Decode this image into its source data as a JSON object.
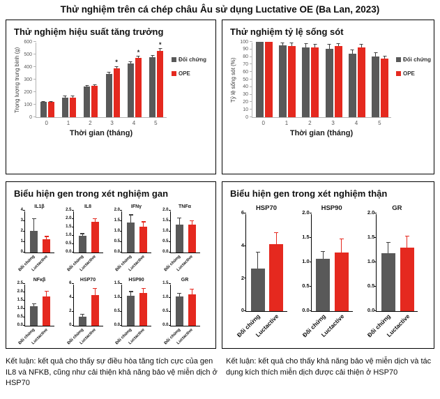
{
  "page_title": "Thử nghiệm trên cá chép châu Âu sử dụng Luctative OE (Ba Lan, 2023)",
  "colors": {
    "control": "#595959",
    "treatment": "#e5291f",
    "axis": "#b3b3b3",
    "error": "#3f3f3f"
  },
  "footers": {
    "left": "Kết luận: kết quả cho thấy sự điều hòa tăng tích cực của gen IL8 và NFKB, cũng như cải thiện khả năng bảo vệ miễn dịch ở HSP70",
    "right": "Kết luận: kết quả cho thấy khả năng bảo vệ miễn dịch và tác dụng kích thích miễn dịch được cải thiện ở HSP70"
  },
  "chart_data": [
    {
      "id": "growth",
      "type": "bar",
      "panel_title": "Thử nghiệm hiệu suất tăng trưởng",
      "xlabel": "Thời gian (tháng)",
      "ylabel": "Trọng lượng trung bình (g)",
      "categories": [
        "0",
        "1",
        "2",
        "3",
        "4",
        "5"
      ],
      "ylim": [
        0,
        600
      ],
      "yticks": [
        "0",
        "100",
        "200",
        "300",
        "400",
        "500",
        "600"
      ],
      "legend_position": "right",
      "grid": false,
      "series": [
        {
          "name": "Đối chứng",
          "role": "control",
          "values": [
            120,
            158,
            245,
            345,
            430,
            480
          ],
          "errors": [
            5,
            6,
            6,
            8,
            8,
            10
          ],
          "sig": [
            0,
            0,
            0,
            0,
            0,
            0
          ]
        },
        {
          "name": "OPE",
          "role": "treatment",
          "values": [
            120,
            158,
            252,
            390,
            470,
            530
          ],
          "errors": [
            5,
            6,
            6,
            12,
            12,
            12
          ],
          "sig": [
            0,
            0,
            0,
            1,
            1,
            1
          ]
        }
      ]
    },
    {
      "id": "survival",
      "type": "bar",
      "panel_title": "Thử nghiệm tỷ lệ sống sót",
      "xlabel": "Thời gian (tháng)",
      "ylabel": "Tỷ lệ sống sót (%)",
      "categories": [
        "0",
        "1",
        "2",
        "3",
        "4",
        "5"
      ],
      "ylim": [
        0,
        100
      ],
      "yticks": [
        "0",
        "10",
        "20",
        "30",
        "40",
        "50",
        "60",
        "70",
        "80",
        "90",
        "100"
      ],
      "legend_position": "right",
      "grid": false,
      "series": [
        {
          "name": "Đối chứng",
          "role": "control",
          "values": [
            100,
            95,
            93,
            91,
            84,
            81
          ],
          "errors": [
            0,
            3,
            4,
            5,
            5,
            4
          ],
          "sig": [
            0,
            0,
            0,
            0,
            0,
            0
          ]
        },
        {
          "name": "OPE",
          "role": "treatment",
          "values": [
            100,
            94,
            93,
            94,
            93,
            78
          ],
          "errors": [
            0,
            4,
            3,
            3,
            3,
            3
          ],
          "sig": [
            0,
            0,
            0,
            0,
            0,
            0
          ]
        }
      ]
    },
    {
      "id": "liver-gene-expression",
      "type": "bar",
      "panel_title": "Biểu hiện gen trong xét nghiệm gan",
      "categories": [
        "Đối chứng",
        "Luctactive"
      ],
      "charts": [
        {
          "gene": "IL1β",
          "ymax": 4,
          "yticks": [
            "0",
            "1",
            "2",
            "3",
            "4"
          ],
          "control": 2.1,
          "control_err": 1.1,
          "treatment": 1.3,
          "treatment_err": 0.2
        },
        {
          "gene": "IL8",
          "ymax": 2.5,
          "yticks": [
            "0.0",
            "0.5",
            "1.0",
            "1.5",
            "2.0",
            "2.5"
          ],
          "control": 1.0,
          "control_err": 0.1,
          "treatment": 1.85,
          "treatment_err": 0.15
        },
        {
          "gene": "IFNγ",
          "ymax": 2.0,
          "yticks": [
            "0.0",
            "0.5",
            "1.0",
            "1.5",
            "2.0"
          ],
          "control": 1.45,
          "control_err": 0.33,
          "treatment": 1.22,
          "treatment_err": 0.23
        },
        {
          "gene": "TNFα",
          "ymax": 2.0,
          "yticks": [
            "0.0",
            "0.5",
            "1.0",
            "1.5",
            "2.0"
          ],
          "control": 1.33,
          "control_err": 0.3,
          "treatment": 1.33,
          "treatment_err": 0.17
        },
        {
          "gene": "NFκβ",
          "ymax": 2.5,
          "yticks": [
            "0.0",
            "0.5",
            "1.0",
            "1.5",
            "2.0",
            "2.5"
          ],
          "control": 1.15,
          "control_err": 0.15,
          "treatment": 1.75,
          "treatment_err": 0.28
        },
        {
          "gene": "HSP70",
          "ymax": 6,
          "yticks": [
            "0",
            "2",
            "4",
            "6"
          ],
          "control": 1.3,
          "control_err": 0.3,
          "treatment": 4.4,
          "treatment_err": 0.9
        },
        {
          "gene": "HSP90",
          "ymax": 1.5,
          "yticks": [
            "0.0",
            "0.5",
            "1.0",
            "1.5"
          ],
          "control": 1.08,
          "control_err": 0.13,
          "treatment": 1.18,
          "treatment_err": 0.14
        },
        {
          "gene": "GR",
          "ymax": 1.5,
          "yticks": [
            "0.0",
            "0.5",
            "1.0",
            "1.5"
          ],
          "control": 1.05,
          "control_err": 0.1,
          "treatment": 1.12,
          "treatment_err": 0.17
        }
      ]
    },
    {
      "id": "kidney-gene-expression",
      "type": "bar",
      "panel_title": "Biểu hiện gen trong xét nghiệm thận",
      "categories": [
        "Đối chứng",
        "Luctactive"
      ],
      "charts": [
        {
          "gene": "HSP70",
          "ymax": 6,
          "yticks": [
            "0",
            "2",
            "4",
            "6"
          ],
          "control": 2.6,
          "control_err": 1.0,
          "treatment": 4.1,
          "treatment_err": 0.7
        },
        {
          "gene": "HSP90",
          "ymax": 2.0,
          "yticks": [
            "0.0",
            "0.5",
            "1.0",
            "1.5",
            "2.0"
          ],
          "control": 1.07,
          "control_err": 0.14,
          "treatment": 1.2,
          "treatment_err": 0.27
        },
        {
          "gene": "GR",
          "ymax": 2.0,
          "yticks": [
            "0.0",
            "0.5",
            "1.0",
            "1.5",
            "2.0"
          ],
          "control": 1.18,
          "control_err": 0.22,
          "treatment": 1.3,
          "treatment_err": 0.23
        }
      ]
    }
  ]
}
